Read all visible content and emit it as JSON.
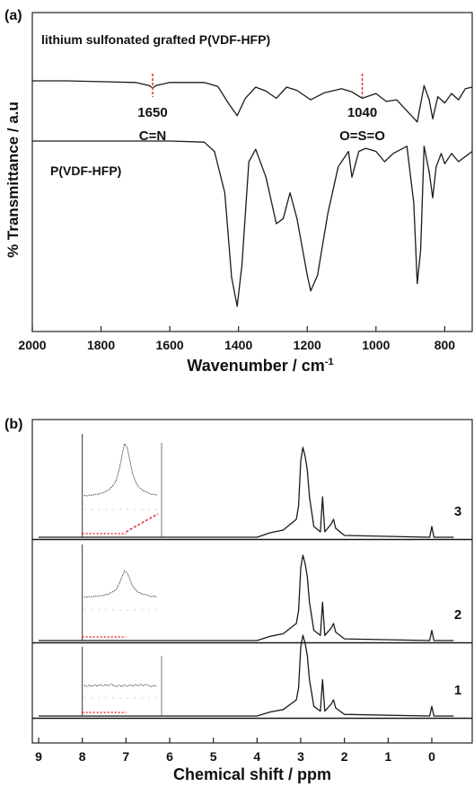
{
  "panel_a": {
    "label": "(a)",
    "series_top_label": "lithium sulfonated grafted P(VDF-HFP)",
    "series_bottom_label": "P(VDF-HFP)",
    "ylabel": "% Transmittance / a.u",
    "xlabel_main": "Wavenumber / cm",
    "xlabel_sup": "-1",
    "annotations": [
      {
        "value": "1650",
        "group": "C=N",
        "x": 1650
      },
      {
        "value": "1040",
        "group": "O=S=O",
        "x": 1040
      }
    ],
    "annotation_color": "#e53935"
  },
  "panel_b": {
    "label": "(b)",
    "xlabel": "Chemical shift / ppm",
    "spectrum_labels": [
      "3",
      "2",
      "1"
    ],
    "inset_color": "#e53935"
  },
  "chart_data": [
    {
      "type": "line",
      "title": "",
      "xlabel": "Wavenumber / cm-1",
      "ylabel": "% Transmittance / a.u",
      "xlim": [
        2000,
        720
      ],
      "x_reversed": true,
      "xticks": [
        2000,
        1800,
        1600,
        1400,
        1200,
        1000,
        800
      ],
      "grid": false,
      "series": [
        {
          "name": "lithium sulfonated grafted P(VDF-HFP)",
          "x": [
            2000,
            1900,
            1800,
            1700,
            1660,
            1650,
            1640,
            1600,
            1500,
            1460,
            1430,
            1404,
            1380,
            1350,
            1320,
            1290,
            1260,
            1230,
            1190,
            1150,
            1100,
            1070,
            1040,
            1000,
            970,
            940,
            910,
            880,
            860,
            845,
            835,
            820,
            800,
            780,
            760,
            740,
            720
          ],
          "y": [
            0.0,
            0.0,
            0.01,
            0.02,
            0.06,
            0.09,
            0.06,
            0.02,
            0.02,
            0.07,
            0.28,
            0.44,
            0.22,
            0.08,
            0.13,
            0.22,
            0.08,
            0.12,
            0.24,
            0.15,
            0.1,
            0.14,
            0.22,
            0.16,
            0.26,
            0.24,
            0.38,
            0.52,
            0.06,
            0.24,
            0.48,
            0.2,
            0.28,
            0.16,
            0.24,
            0.1,
            0.08
          ]
        },
        {
          "name": "P(VDF-HFP)",
          "x": [
            2000,
            1900,
            1800,
            1700,
            1600,
            1500,
            1470,
            1440,
            1420,
            1404,
            1390,
            1370,
            1350,
            1320,
            1290,
            1270,
            1250,
            1230,
            1200,
            1190,
            1170,
            1140,
            1110,
            1080,
            1070,
            1050,
            1030,
            1000,
            975,
            950,
            910,
            890,
            880,
            870,
            860,
            845,
            835,
            825,
            810,
            800,
            780,
            760,
            740,
            720
          ],
          "y": [
            0.0,
            0.0,
            0.0,
            0.0,
            0.0,
            0.01,
            0.1,
            0.5,
            1.32,
            1.6,
            1.2,
            0.2,
            0.08,
            0.35,
            0.8,
            0.75,
            0.5,
            0.75,
            1.3,
            1.45,
            1.3,
            0.7,
            0.25,
            0.1,
            0.35,
            0.1,
            0.07,
            0.1,
            0.2,
            0.12,
            0.05,
            0.6,
            1.38,
            1.05,
            0.05,
            0.3,
            0.55,
            0.25,
            0.12,
            0.22,
            0.12,
            0.2,
            0.15,
            0.1
          ]
        }
      ]
    },
    {
      "type": "line",
      "title": "",
      "xlabel": "Chemical shift / ppm",
      "ylabel": "",
      "xlim": [
        9,
        -0.5
      ],
      "x_reversed": true,
      "xticks": [
        9,
        8,
        7,
        6,
        5,
        4,
        3,
        2,
        1,
        0
      ],
      "grid": false,
      "series": [
        {
          "name": "3",
          "x": [
            9,
            4.0,
            3.7,
            3.4,
            3.1,
            3.05,
            3.0,
            2.95,
            2.9,
            2.85,
            2.8,
            2.7,
            2.55,
            2.5,
            2.45,
            2.3,
            2.25,
            2.2,
            2.0,
            0.05,
            0.0,
            -0.05,
            -0.5
          ],
          "y": [
            0,
            0,
            0.05,
            0.08,
            0.2,
            0.35,
            0.85,
            1.0,
            0.9,
            0.75,
            0.45,
            0.12,
            0.06,
            0.45,
            0.06,
            0.15,
            0.2,
            0.1,
            0.02,
            0,
            0.12,
            0,
            0
          ]
        },
        {
          "name": "2",
          "x": [
            9,
            4.0,
            3.7,
            3.4,
            3.1,
            3.05,
            3.0,
            2.95,
            2.9,
            2.85,
            2.8,
            2.7,
            2.55,
            2.5,
            2.45,
            2.3,
            2.25,
            2.2,
            2.0,
            0.05,
            0.0,
            -0.05,
            -0.5
          ],
          "y": [
            0,
            0,
            0.05,
            0.08,
            0.2,
            0.35,
            0.85,
            1.0,
            0.9,
            0.75,
            0.45,
            0.12,
            0.06,
            0.45,
            0.06,
            0.15,
            0.2,
            0.1,
            0.02,
            0,
            0.12,
            0,
            0
          ]
        },
        {
          "name": "1",
          "x": [
            9,
            4.0,
            3.7,
            3.4,
            3.1,
            3.05,
            3.0,
            2.95,
            2.9,
            2.85,
            2.8,
            2.7,
            2.55,
            2.5,
            2.45,
            2.3,
            2.25,
            2.2,
            2.0,
            0.05,
            0.0,
            -0.05,
            -0.5
          ],
          "y": [
            0,
            0,
            0.05,
            0.08,
            0.2,
            0.35,
            0.85,
            1.0,
            0.9,
            0.75,
            0.45,
            0.12,
            0.06,
            0.45,
            0.06,
            0.15,
            0.2,
            0.1,
            0.02,
            0,
            0.12,
            0,
            0
          ]
        }
      ]
    }
  ]
}
